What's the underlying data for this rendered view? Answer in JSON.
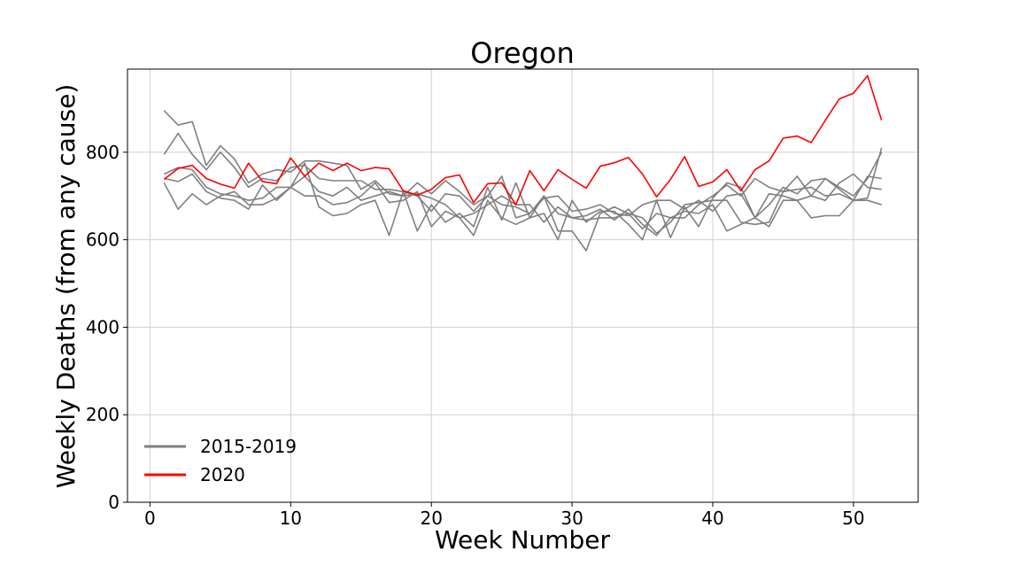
{
  "chart_data": {
    "type": "line",
    "title": "Oregon",
    "xlabel": "Week Number",
    "ylabel": "Weekly Deaths (from any cause)",
    "xlim": [
      -1.6,
      54.6
    ],
    "ylim": [
      0,
      990
    ],
    "xticks": [
      0,
      10,
      20,
      30,
      40,
      50
    ],
    "yticks": [
      0,
      200,
      400,
      600,
      800
    ],
    "grid": true,
    "legend_position": "lower-left",
    "legend": [
      {
        "label": "2015-2019",
        "color": "#808080"
      },
      {
        "label": "2020",
        "color": "#ff0000"
      }
    ],
    "x": [
      1,
      2,
      3,
      4,
      5,
      6,
      7,
      8,
      9,
      10,
      11,
      12,
      13,
      14,
      15,
      16,
      17,
      18,
      19,
      20,
      21,
      22,
      23,
      24,
      25,
      26,
      27,
      28,
      29,
      30,
      31,
      32,
      33,
      34,
      35,
      36,
      37,
      38,
      39,
      40,
      41,
      42,
      43,
      44,
      45,
      46,
      47,
      48,
      49,
      50,
      51,
      52
    ],
    "series": [
      {
        "group": "2015-2019",
        "color": "#808080",
        "values": [
          895,
          862,
          870,
          770,
          815,
          785,
          730,
          750,
          760,
          755,
          780,
          780,
          775,
          770,
          715,
          735,
          705,
          700,
          730,
          705,
          735,
          710,
          680,
          700,
          745,
          650,
          660,
          700,
          660,
          650,
          655,
          670,
          645,
          670,
          635,
          610,
          650,
          650,
          680,
          700,
          725,
          700,
          740,
          720,
          710,
          745,
          700,
          740,
          720,
          700,
          740,
          800
        ]
      },
      {
        "group": "2015-2019",
        "color": "#808080",
        "values": [
          795,
          843,
          795,
          760,
          800,
          765,
          720,
          740,
          735,
          765,
          770,
          740,
          735,
          735,
          735,
          715,
          715,
          710,
          700,
          665,
          705,
          700,
          665,
          700,
          680,
          675,
          660,
          695,
          700,
          665,
          670,
          680,
          660,
          655,
          680,
          690,
          690,
          670,
          690,
          665,
          700,
          705,
          650,
          680,
          720,
          705,
          735,
          740,
          715,
          690,
          695,
          810
        ]
      },
      {
        "group": "2015-2019",
        "color": "#808080",
        "values": [
          750,
          765,
          760,
          720,
          705,
          700,
          690,
          695,
          720,
          720,
          745,
          710,
          700,
          720,
          690,
          700,
          710,
          700,
          705,
          695,
          680,
          650,
          660,
          680,
          700,
          680,
          680,
          640,
          675,
          650,
          645,
          650,
          650,
          660,
          650,
          615,
          640,
          680,
          685,
          690,
          690,
          640,
          635,
          640,
          710,
          715,
          720,
          700,
          705,
          690,
          745,
          740
        ]
      },
      {
        "group": "2015-2019",
        "color": "#808080",
        "values": [
          740,
          733,
          750,
          710,
          695,
          690,
          670,
          725,
          690,
          720,
          700,
          700,
          680,
          685,
          700,
          730,
          685,
          690,
          710,
          630,
          665,
          650,
          610,
          690,
          650,
          635,
          650,
          700,
          620,
          620,
          575,
          660,
          675,
          660,
          625,
          660,
          650,
          665,
          660,
          680,
          620,
          635,
          650,
          705,
          700,
          690,
          650,
          655,
          655,
          690,
          690,
          680
        ]
      },
      {
        "group": "2015-2019",
        "color": "#808080",
        "values": [
          730,
          670,
          705,
          680,
          700,
          710,
          680,
          680,
          695,
          720,
          775,
          675,
          655,
          660,
          680,
          690,
          610,
          710,
          620,
          680,
          640,
          660,
          630,
          720,
          645,
          730,
          650,
          660,
          600,
          690,
          640,
          665,
          665,
          635,
          600,
          690,
          605,
          675,
          630,
          695,
          730,
          720,
          650,
          630,
          690,
          690,
          700,
          690,
          730,
          750,
          720,
          715
        ]
      },
      {
        "group": "2020",
        "color": "#ff0000",
        "values": [
          738,
          763,
          770,
          740,
          727,
          718,
          775,
          733,
          728,
          787,
          745,
          775,
          758,
          775,
          758,
          765,
          762,
          712,
          702,
          715,
          742,
          748,
          685,
          728,
          730,
          680,
          758,
          712,
          760,
          738,
          718,
          768,
          776,
          788,
          750,
          698,
          738,
          790,
          722,
          732,
          760,
          712,
          760,
          780,
          832,
          837,
          822,
          873,
          922,
          935,
          975,
          873
        ]
      }
    ]
  }
}
